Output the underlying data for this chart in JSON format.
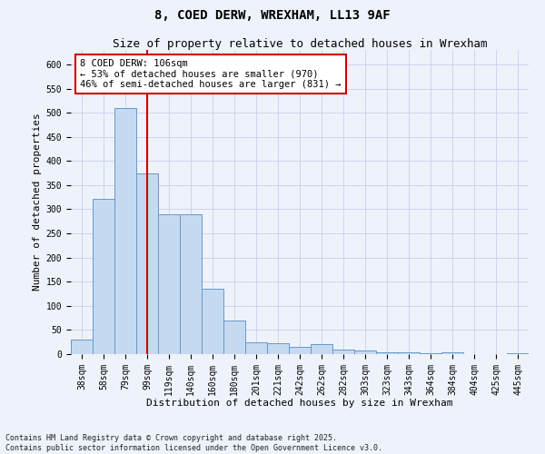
{
  "title_line1": "8, COED DERW, WREXHAM, LL13 9AF",
  "title_line2": "Size of property relative to detached houses in Wrexham",
  "xlabel": "Distribution of detached houses by size in Wrexham",
  "ylabel": "Number of detached properties",
  "categories": [
    "38sqm",
    "58sqm",
    "79sqm",
    "99sqm",
    "119sqm",
    "140sqm",
    "160sqm",
    "180sqm",
    "201sqm",
    "221sqm",
    "242sqm",
    "262sqm",
    "282sqm",
    "303sqm",
    "323sqm",
    "343sqm",
    "364sqm",
    "384sqm",
    "404sqm",
    "425sqm",
    "445sqm"
  ],
  "values": [
    30,
    322,
    510,
    375,
    290,
    290,
    135,
    70,
    25,
    22,
    15,
    20,
    10,
    7,
    4,
    4,
    1,
    4,
    0,
    0,
    2
  ],
  "bar_color": "#c5d9f0",
  "bar_edge_color": "#6699cc",
  "background_color": "#eef2fb",
  "grid_color": "#c8d0e8",
  "annotation_text": "8 COED DERW: 106sqm\n← 53% of detached houses are smaller (970)\n46% of semi-detached houses are larger (831) →",
  "annotation_box_color": "#ffffff",
  "annotation_box_edge": "#cc0000",
  "vline_x": 3.0,
  "vline_color": "#cc0000",
  "ylim": [
    0,
    630
  ],
  "yticks": [
    0,
    50,
    100,
    150,
    200,
    250,
    300,
    350,
    400,
    450,
    500,
    550,
    600
  ],
  "footer": "Contains HM Land Registry data © Crown copyright and database right 2025.\nContains public sector information licensed under the Open Government Licence v3.0.",
  "title_fontsize": 10,
  "subtitle_fontsize": 9,
  "axis_fontsize": 8,
  "tick_fontsize": 7
}
